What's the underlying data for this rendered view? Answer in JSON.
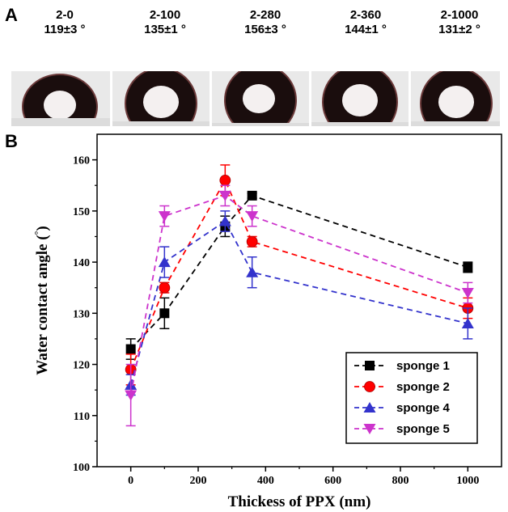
{
  "panels": {
    "a": "A",
    "b": "B"
  },
  "droplets": [
    {
      "name": "2-0",
      "angle": "119±3 °"
    },
    {
      "name": "2-100",
      "angle": "135±1 °"
    },
    {
      "name": "2-280",
      "angle": "156±3 °"
    },
    {
      "name": "2-360",
      "angle": "144±1 °"
    },
    {
      "name": "2-1000",
      "angle": "131±2 °"
    }
  ],
  "chart_data": {
    "type": "line",
    "title": "",
    "xlabel": "Thickess of PPX (nm)",
    "ylabel": "Water contact angle (°)",
    "xlim": [
      -100,
      1100
    ],
    "ylim": [
      100,
      165
    ],
    "xticks": [
      0,
      200,
      400,
      600,
      800,
      1000
    ],
    "yticks": [
      100,
      110,
      120,
      130,
      140,
      150,
      160
    ],
    "grid": false,
    "legend_position": "bottom-right",
    "x": [
      0,
      100,
      280,
      360,
      1000
    ],
    "series": [
      {
        "name": "sponge 1",
        "color": "#000000",
        "marker": "square",
        "values": [
          123,
          130,
          147,
          153,
          139
        ],
        "errors": [
          2,
          3,
          2,
          0.5,
          1
        ]
      },
      {
        "name": "sponge 2",
        "color": "#ff0000",
        "marker": "circle",
        "values": [
          119,
          135,
          156,
          144,
          131
        ],
        "errors": [
          3,
          1,
          3,
          1,
          2
        ]
      },
      {
        "name": "sponge 4",
        "color": "#3333cc",
        "marker": "triangle-up",
        "values": [
          116,
          140,
          148,
          138,
          128
        ],
        "errors": [
          2,
          3,
          2,
          3,
          3
        ]
      },
      {
        "name": "sponge 5",
        "color": "#cc33cc",
        "marker": "triangle-down",
        "values": [
          114,
          149,
          153,
          149,
          134
        ],
        "errors": [
          6,
          2,
          2,
          2,
          2
        ]
      }
    ]
  }
}
